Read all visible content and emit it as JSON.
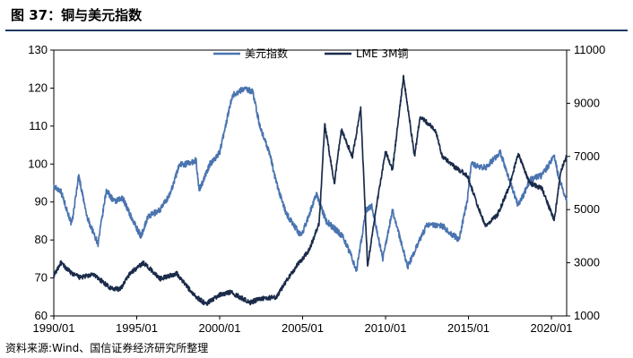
{
  "title": "图 37：铜与美元指数",
  "source": "资料来源:Wind、国信证券经济研究所整理",
  "chart_data": {
    "type": "line",
    "x_tick_labels": [
      "1990/01",
      "1995/01",
      "2000/01",
      "2005/01",
      "2010/01",
      "2015/01",
      "2020/01"
    ],
    "x_range": [
      "1990/01",
      "2020/12"
    ],
    "y_left": {
      "lim": [
        60,
        130
      ],
      "ticks": [
        60,
        70,
        80,
        90,
        100,
        110,
        120,
        130
      ]
    },
    "y_right": {
      "lim": [
        1000,
        11000
      ],
      "ticks": [
        1000,
        3000,
        5000,
        7000,
        9000,
        11000
      ]
    },
    "grid": false,
    "legend_position": "top-center",
    "series": [
      {
        "name": "美元指数",
        "axis": "left",
        "color": "#4a74b0",
        "points": [
          [
            "1990/01",
            94
          ],
          [
            "1990/06",
            93
          ],
          [
            "1991/02",
            84
          ],
          [
            "1991/07",
            97
          ],
          [
            "1992/01",
            86
          ],
          [
            "1992/09",
            79
          ],
          [
            "1993/03",
            93
          ],
          [
            "1993/09",
            90
          ],
          [
            "1994/03",
            91
          ],
          [
            "1994/09",
            86
          ],
          [
            "1995/04",
            81
          ],
          [
            "1995/09",
            86
          ],
          [
            "1996/06",
            88
          ],
          [
            "1997/01",
            92
          ],
          [
            "1997/08",
            100
          ],
          [
            "1998/01",
            100
          ],
          [
            "1998/08",
            101
          ],
          [
            "1998/10",
            93
          ],
          [
            "1999/06",
            100
          ],
          [
            "2000/01",
            103
          ],
          [
            "2000/10",
            118
          ],
          [
            "2001/07",
            120
          ],
          [
            "2002/01",
            119
          ],
          [
            "2002/06",
            110
          ],
          [
            "2003/01",
            103
          ],
          [
            "2003/06",
            95
          ],
          [
            "2004/01",
            87
          ],
          [
            "2004/12",
            81
          ],
          [
            "2005/11",
            92
          ],
          [
            "2006/06",
            85
          ],
          [
            "2007/06",
            81
          ],
          [
            "2008/01",
            75
          ],
          [
            "2008/04",
            72
          ],
          [
            "2008/11",
            88
          ],
          [
            "2009/03",
            89
          ],
          [
            "2009/11",
            75
          ],
          [
            "2010/06",
            88
          ],
          [
            "2011/05",
            73
          ],
          [
            "2012/07",
            84
          ],
          [
            "2013/05",
            84
          ],
          [
            "2014/06",
            80
          ],
          [
            "2014/12",
            90
          ],
          [
            "2015/03",
            100
          ],
          [
            "2016/01",
            99
          ],
          [
            "2016/12",
            103
          ],
          [
            "2018/01",
            89
          ],
          [
            "2018/10",
            96
          ],
          [
            "2019/06",
            97
          ],
          [
            "2020/03",
            102
          ],
          [
            "2020/06",
            97
          ],
          [
            "2020/12",
            90
          ]
        ]
      },
      {
        "name": "LME 3M铜",
        "axis": "right",
        "color": "#1a2b4a",
        "points": [
          [
            "1990/01",
            2500
          ],
          [
            "1990/06",
            3000
          ],
          [
            "1991/02",
            2600
          ],
          [
            "1991/08",
            2450
          ],
          [
            "1992/06",
            2550
          ],
          [
            "1993/06",
            2050
          ],
          [
            "1994/01",
            2000
          ],
          [
            "1994/08",
            2600
          ],
          [
            "1995/06",
            3000
          ],
          [
            "1996/06",
            2400
          ],
          [
            "1997/06",
            2600
          ],
          [
            "1998/06",
            1800
          ],
          [
            "1999/03",
            1450
          ],
          [
            "2000/01",
            1800
          ],
          [
            "2000/09",
            1900
          ],
          [
            "2001/11",
            1500
          ],
          [
            "2002/06",
            1650
          ],
          [
            "2003/06",
            1700
          ],
          [
            "2004/01",
            2300
          ],
          [
            "2004/09",
            2900
          ],
          [
            "2005/06",
            3500
          ],
          [
            "2006/01",
            4500
          ],
          [
            "2006/05",
            8200
          ],
          [
            "2006/12",
            6000
          ],
          [
            "2007/05",
            8000
          ],
          [
            "2008/01",
            7000
          ],
          [
            "2008/07",
            8800
          ],
          [
            "2008/12",
            2900
          ],
          [
            "2009/06",
            5000
          ],
          [
            "2010/01",
            7200
          ],
          [
            "2010/06",
            6500
          ],
          [
            "2011/02",
            10000
          ],
          [
            "2011/10",
            7000
          ],
          [
            "2012/02",
            8500
          ],
          [
            "2013/01",
            8000
          ],
          [
            "2013/06",
            7000
          ],
          [
            "2014/03",
            6600
          ],
          [
            "2014/12",
            6300
          ],
          [
            "2015/08",
            5100
          ],
          [
            "2016/01",
            4400
          ],
          [
            "2016/10",
            4800
          ],
          [
            "2017/06",
            5800
          ],
          [
            "2018/01",
            7100
          ],
          [
            "2018/09",
            6000
          ],
          [
            "2019/06",
            5800
          ],
          [
            "2020/03",
            4600
          ],
          [
            "2020/08",
            6500
          ],
          [
            "2020/12",
            7000
          ]
        ]
      }
    ]
  }
}
